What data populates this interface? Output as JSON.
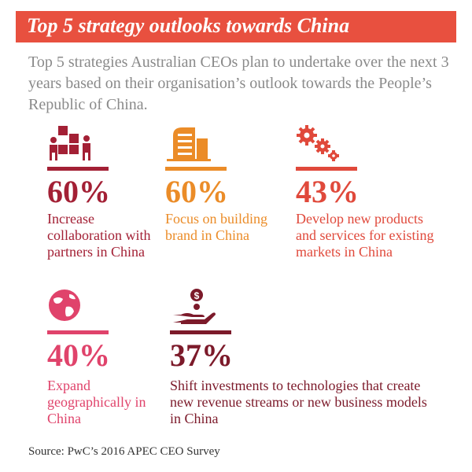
{
  "header": {
    "title": "Top 5 strategy outlooks towards China"
  },
  "intro": "Top 5 strategies Australian CEOs plan to undertake over the next 3 years based on their organisation’s outlook towards the People’s Republic of China.",
  "colors": {
    "banner": "#e8503f",
    "dark_red": "#a32035",
    "orange": "#eb8c28",
    "red": "#e0493b",
    "pink": "#e0436b",
    "maroon": "#7c1a2a",
    "intro_text": "#8a8a8a"
  },
  "items": [
    {
      "percent": "60%",
      "label": "Increase collaboration with partners in China",
      "icon": "teamwork-blocks-icon",
      "color": "#a32035"
    },
    {
      "percent": "60%",
      "label": "Focus on building brand in China",
      "icon": "building-icon",
      "color": "#eb8c28"
    },
    {
      "percent": "43%",
      "label": "Develop new products and services for existing markets in China",
      "icon": "gears-icon",
      "color": "#e0493b"
    },
    {
      "percent": "40%",
      "label": "Expand geographically in China",
      "icon": "globe-icon",
      "color": "#e0436b"
    },
    {
      "percent": "37%",
      "label": "Shift investments to technologies that create new revenue streams or new business models in China",
      "icon": "hand-money-icon",
      "color": "#7c1a2a"
    }
  ],
  "source": "Source: PwC’s 2016 APEC CEO Survey"
}
